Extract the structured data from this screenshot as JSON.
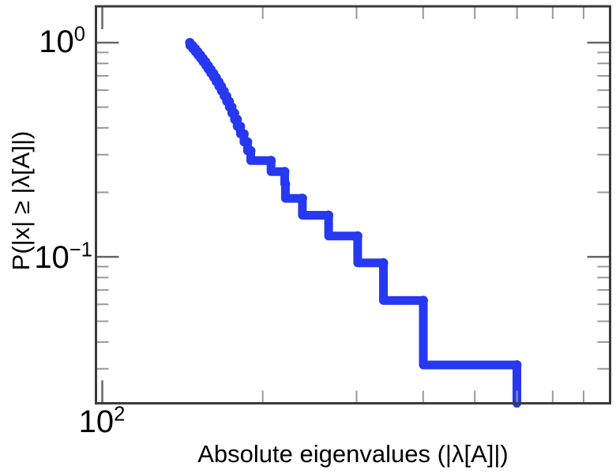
{
  "figure": {
    "background": "#ffffff"
  },
  "chart_data": {
    "type": "line",
    "subtype": "ccdf-step-loglog",
    "title": "",
    "xlabel": "Absolute eigenvalues (|λ[A]|)",
    "ylabel": "P(|x| ≥ |λ[A]|)",
    "x_scale": "log",
    "y_scale": "log",
    "xlim": [
      97.3,
      897
    ],
    "ylim": [
      0.0207,
      1.478
    ],
    "grid": false,
    "legend_position": "none",
    "n_samples": 32,
    "eigenvalues": [
      146.0,
      147.7,
      149.4,
      151.1,
      152.8,
      154.5,
      156.3,
      158.0,
      159.8,
      161.7,
      163.5,
      165.4,
      167.3,
      169.2,
      171.1,
      173.1,
      175.0,
      177.0,
      179.1,
      181.6,
      184.4,
      187.3,
      189.9,
      207.3,
      219.9,
      220.6,
      237.4,
      265.9,
      301.4,
      336.9,
      400.2,
      599.8
    ],
    "ccdf_levels_note": "y steps: P(|x| >= v) = k/32, from 1 at smallest eigenvalue down to 1/32, dropping toward 0 at the largest eigenvalue",
    "x_ticks": {
      "major": [
        100
      ],
      "minor": [
        200,
        300,
        400,
        500,
        600,
        700,
        800
      ]
    },
    "y_ticks": {
      "major": [
        1,
        0.1
      ],
      "minor": [
        0.9,
        0.8,
        0.7,
        0.6,
        0.5,
        0.4,
        0.3,
        0.2,
        0.09,
        0.08,
        0.07,
        0.06,
        0.05,
        0.04,
        0.03
      ]
    },
    "tick_labels": {
      "x_major": [
        {
          "base": "10",
          "exp": "2"
        }
      ],
      "y_major": [
        {
          "base": "10",
          "exp": "0"
        },
        {
          "base": "10",
          "exp": "−1"
        }
      ]
    },
    "colors": {
      "curve": "#2638f0",
      "frame": "#3a3a3a",
      "tick_major": "#666666",
      "tick_minor": "#999999",
      "text": "#000000"
    }
  }
}
